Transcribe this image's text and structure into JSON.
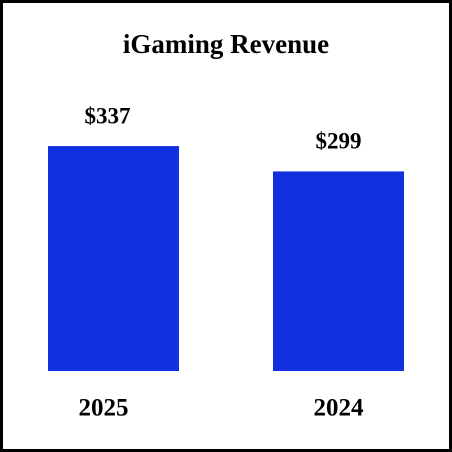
{
  "chart_data": {
    "type": "bar",
    "title": "iGaming Revenue",
    "categories": [
      "2025",
      "2024"
    ],
    "values": [
      337,
      299
    ],
    "value_labels": [
      "$337",
      "$299"
    ],
    "color": "#1131e0"
  }
}
